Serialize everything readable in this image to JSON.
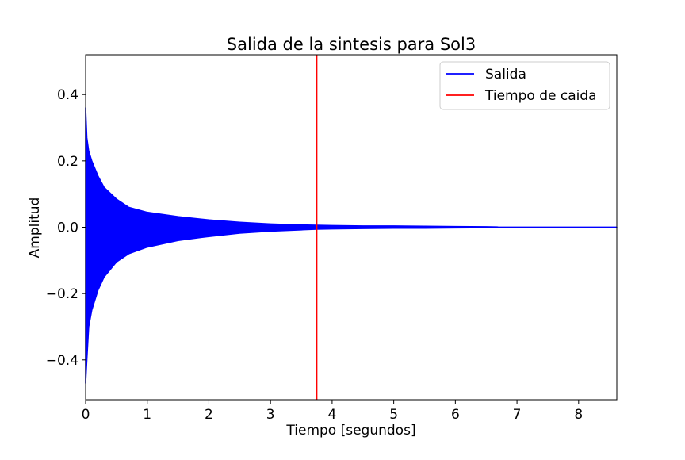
{
  "chart_data": {
    "type": "line",
    "title": "Salida de la sintesis para Sol3",
    "xlabel": "Tiempo [segundos]",
    "ylabel": "Amplitud",
    "xlim": [
      0,
      8.62
    ],
    "ylim": [
      -0.52,
      0.52
    ],
    "x_ticks": [
      0,
      1,
      2,
      3,
      4,
      5,
      6,
      7,
      8
    ],
    "x_tick_labels": [
      "0",
      "1",
      "2",
      "3",
      "4",
      "5",
      "6",
      "7",
      "8"
    ],
    "y_ticks": [
      -0.4,
      -0.2,
      0.0,
      0.2,
      0.4
    ],
    "y_tick_labels": [
      "−0.4",
      "−0.2",
      "0.0",
      "0.2",
      "0.4"
    ],
    "grid": false,
    "legend_position": "top-right",
    "series": [
      {
        "name": "Salida",
        "color": "#0000ff",
        "kind": "oscillating-envelope",
        "envelope": {
          "t": [
            0,
            0.02,
            0.05,
            0.1,
            0.2,
            0.3,
            0.5,
            0.7,
            1.0,
            1.5,
            2.0,
            2.5,
            3.0,
            3.5,
            3.75,
            4.0,
            4.5,
            5.0,
            5.5,
            6.0,
            6.5,
            6.68,
            6.7,
            8.62
          ],
          "upper": [
            0.36,
            0.27,
            0.23,
            0.2,
            0.155,
            0.12,
            0.085,
            0.06,
            0.045,
            0.032,
            0.022,
            0.015,
            0.01,
            0.007,
            0.006,
            0.005,
            0.004,
            0.004,
            0.003,
            0.002,
            0.0015,
            0.001,
            0.0,
            0.0
          ],
          "lower": [
            -0.47,
            -0.4,
            -0.3,
            -0.25,
            -0.19,
            -0.15,
            -0.105,
            -0.08,
            -0.06,
            -0.04,
            -0.028,
            -0.018,
            -0.012,
            -0.008,
            -0.006,
            -0.005,
            -0.004,
            -0.003,
            -0.003,
            -0.002,
            -0.0015,
            -0.001,
            0.0,
            0.0
          ]
        }
      },
      {
        "name": "Tiempo de caida",
        "color": "#ff0000",
        "kind": "vertical-line",
        "x": 3.75
      }
    ]
  }
}
